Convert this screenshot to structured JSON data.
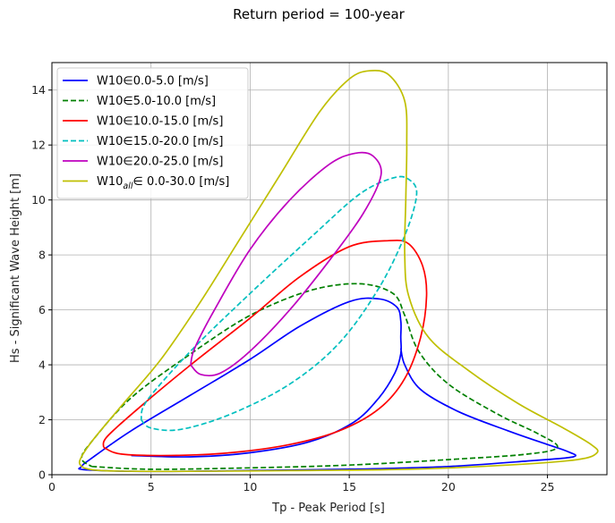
{
  "chart_data": {
    "type": "line",
    "title": "Return period = 100-year",
    "xlabel": "Tp - Peak Period [s]",
    "ylabel": "Hs - Significant Wave Height [m]",
    "xlim": [
      0,
      28
    ],
    "ylim": [
      0,
      15
    ],
    "xticks": [
      "0",
      "5",
      "10",
      "15",
      "20",
      "25"
    ],
    "yticks": [
      "0",
      "2",
      "4",
      "6",
      "8",
      "10",
      "12",
      "14"
    ],
    "grid": true,
    "legend_position": "upper-left",
    "series": [
      {
        "name_main": "W10∈0.0-5.0 [m/s]",
        "color": "#0000ff",
        "style": "solid",
        "points": [
          [
            4.0,
            0.7
          ],
          [
            7.0,
            0.65
          ],
          [
            10.0,
            0.8
          ],
          [
            13.0,
            1.2
          ],
          [
            15.2,
            1.9
          ],
          [
            16.5,
            2.8
          ],
          [
            17.3,
            3.7
          ],
          [
            17.6,
            4.4
          ],
          [
            17.6,
            5.0
          ],
          [
            17.6,
            5.6
          ],
          [
            17.4,
            6.1
          ],
          [
            16.5,
            6.4
          ],
          [
            15.0,
            6.3
          ],
          [
            12.5,
            5.4
          ],
          [
            10.0,
            4.2
          ],
          [
            7.0,
            2.9
          ],
          [
            4.0,
            1.6
          ],
          [
            2.0,
            0.6
          ],
          [
            1.5,
            0.3
          ],
          [
            1.7,
            0.18
          ],
          [
            5.0,
            0.12
          ],
          [
            10.0,
            0.15
          ],
          [
            15.0,
            0.2
          ],
          [
            20.0,
            0.3
          ],
          [
            24.0,
            0.5
          ],
          [
            26.3,
            0.65
          ],
          [
            26.0,
            0.85
          ],
          [
            25.0,
            1.1
          ],
          [
            23.0,
            1.6
          ],
          [
            20.5,
            2.3
          ],
          [
            18.6,
            3.1
          ],
          [
            17.8,
            4.0
          ],
          [
            17.6,
            4.6
          ]
        ]
      },
      {
        "name_main": "W10∈5.0-10.0 [m/s]",
        "color": "#008000",
        "style": "dashed",
        "points": [
          [
            2.0,
            0.3
          ],
          [
            5.0,
            0.2
          ],
          [
            10.0,
            0.25
          ],
          [
            15.0,
            0.35
          ],
          [
            20.0,
            0.55
          ],
          [
            24.0,
            0.75
          ],
          [
            25.5,
            1.0
          ],
          [
            24.5,
            1.5
          ],
          [
            22.5,
            2.2
          ],
          [
            20.0,
            3.3
          ],
          [
            18.5,
            4.5
          ],
          [
            17.8,
            5.8
          ],
          [
            17.2,
            6.6
          ],
          [
            15.5,
            6.95
          ],
          [
            13.0,
            6.7
          ],
          [
            10.0,
            5.8
          ],
          [
            7.0,
            4.4
          ],
          [
            4.0,
            2.8
          ],
          [
            2.0,
            1.2
          ],
          [
            1.5,
            0.6
          ],
          [
            2.0,
            0.3
          ]
        ]
      },
      {
        "name_main": "W10∈10.0-15.0 [m/s]",
        "color": "#ff0000",
        "style": "solid",
        "points": [
          [
            2.6,
            1.0
          ],
          [
            3.5,
            0.75
          ],
          [
            6.0,
            0.7
          ],
          [
            9.0,
            0.8
          ],
          [
            12.0,
            1.1
          ],
          [
            14.5,
            1.6
          ],
          [
            16.5,
            2.4
          ],
          [
            17.8,
            3.5
          ],
          [
            18.6,
            5.0
          ],
          [
            18.9,
            6.5
          ],
          [
            18.7,
            7.6
          ],
          [
            18.0,
            8.4
          ],
          [
            17.0,
            8.52
          ],
          [
            15.0,
            8.3
          ],
          [
            12.5,
            7.2
          ],
          [
            10.0,
            5.7
          ],
          [
            7.0,
            4.0
          ],
          [
            4.5,
            2.5
          ],
          [
            2.8,
            1.4
          ],
          [
            2.6,
            1.0
          ]
        ]
      },
      {
        "name_main": "W10∈15.0-20.0 [m/s]",
        "color": "#00bfbf",
        "style": "dashed",
        "points": [
          [
            4.5,
            2.0
          ],
          [
            5.0,
            1.7
          ],
          [
            6.5,
            1.65
          ],
          [
            9.0,
            2.2
          ],
          [
            12.0,
            3.3
          ],
          [
            14.5,
            4.8
          ],
          [
            16.5,
            6.8
          ],
          [
            17.8,
            8.7
          ],
          [
            18.4,
            10.2
          ],
          [
            18.0,
            10.75
          ],
          [
            17.2,
            10.8
          ],
          [
            15.5,
            10.2
          ],
          [
            13.0,
            8.6
          ],
          [
            10.0,
            6.6
          ],
          [
            7.0,
            4.5
          ],
          [
            4.8,
            2.7
          ],
          [
            4.5,
            2.0
          ]
        ]
      },
      {
        "name_main": "W10∈20.0-25.0 [m/s]",
        "color": "#bf00bf",
        "style": "solid",
        "points": [
          [
            7.0,
            4.0
          ],
          [
            7.5,
            3.65
          ],
          [
            8.5,
            3.7
          ],
          [
            10.0,
            4.5
          ],
          [
            12.0,
            6.0
          ],
          [
            14.0,
            7.8
          ],
          [
            15.7,
            9.5
          ],
          [
            16.6,
            10.9
          ],
          [
            16.2,
            11.6
          ],
          [
            15.3,
            11.7
          ],
          [
            14.0,
            11.3
          ],
          [
            12.0,
            10.0
          ],
          [
            10.0,
            8.2
          ],
          [
            8.2,
            6.0
          ],
          [
            7.2,
            4.6
          ],
          [
            7.0,
            4.0
          ]
        ]
      },
      {
        "name_main": "W10",
        "name_sub": "all",
        "name_rest": "∈ 0.0-30.0 [m/s]",
        "color": "#bfbf00",
        "style": "solid",
        "points": [
          [
            1.6,
            0.25
          ],
          [
            1.4,
            0.5
          ],
          [
            2.0,
            1.2
          ],
          [
            3.5,
            2.5
          ],
          [
            5.5,
            4.2
          ],
          [
            7.5,
            6.3
          ],
          [
            9.5,
            8.6
          ],
          [
            11.5,
            10.9
          ],
          [
            13.5,
            13.2
          ],
          [
            15.0,
            14.4
          ],
          [
            16.0,
            14.7
          ],
          [
            17.0,
            14.55
          ],
          [
            17.8,
            13.6
          ],
          [
            17.9,
            12.0
          ],
          [
            17.85,
            10.0
          ],
          [
            17.8,
            8.0
          ],
          [
            18.0,
            6.5
          ],
          [
            19.0,
            5.0
          ],
          [
            21.0,
            3.8
          ],
          [
            23.5,
            2.6
          ],
          [
            25.8,
            1.7
          ],
          [
            27.2,
            1.1
          ],
          [
            27.5,
            0.8
          ],
          [
            26.5,
            0.55
          ],
          [
            23.0,
            0.35
          ],
          [
            18.0,
            0.2
          ],
          [
            12.0,
            0.15
          ],
          [
            6.0,
            0.12
          ],
          [
            2.5,
            0.15
          ],
          [
            1.6,
            0.25
          ]
        ]
      }
    ]
  }
}
